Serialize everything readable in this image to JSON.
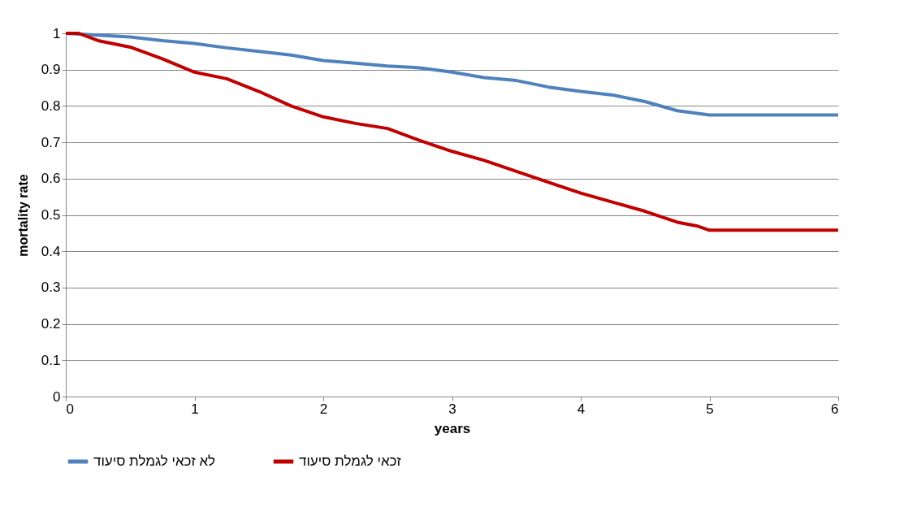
{
  "chart_data": {
    "type": "line",
    "xlabel": "years",
    "ylabel": "mortality rate",
    "xlim": [
      0,
      6
    ],
    "xticks": [
      0,
      1,
      2,
      3,
      4,
      5,
      6
    ],
    "ylim": [
      0,
      1
    ],
    "yticks": [
      0,
      0.1,
      0.2,
      0.3,
      0.4,
      0.5,
      0.6,
      0.7,
      0.8,
      0.9,
      1
    ],
    "grid": "y",
    "legend": "bottom",
    "series": [
      {
        "name": "לא זכאי לגמלת סיעוד",
        "color": "#4f81bd",
        "x": [
          0,
          0.25,
          0.5,
          0.75,
          1,
          1.25,
          1.5,
          1.75,
          2,
          2.25,
          2.5,
          2.75,
          3,
          3.25,
          3.5,
          3.75,
          4,
          4.25,
          4.5,
          4.75,
          5,
          6
        ],
        "values": [
          1,
          0.995,
          0.99,
          0.98,
          0.972,
          0.96,
          0.95,
          0.94,
          0.925,
          0.918,
          0.91,
          0.905,
          0.893,
          0.878,
          0.87,
          0.852,
          0.84,
          0.83,
          0.812,
          0.787,
          0.775,
          0.775
        ]
      },
      {
        "name": "זכאי לגמלת סיעוד",
        "color": "#c00000",
        "x": [
          0,
          0.1,
          0.25,
          0.5,
          0.75,
          1,
          1.25,
          1.5,
          1.75,
          2,
          2.25,
          2.5,
          2.75,
          3,
          3.25,
          3.5,
          3.75,
          4,
          4.25,
          4.5,
          4.75,
          4.9,
          5,
          6
        ],
        "values": [
          1,
          1,
          0.98,
          0.962,
          0.93,
          0.893,
          0.875,
          0.84,
          0.8,
          0.77,
          0.752,
          0.738,
          0.705,
          0.675,
          0.65,
          0.62,
          0.59,
          0.56,
          0.535,
          0.51,
          0.48,
          0.47,
          0.458,
          0.458
        ]
      }
    ]
  }
}
